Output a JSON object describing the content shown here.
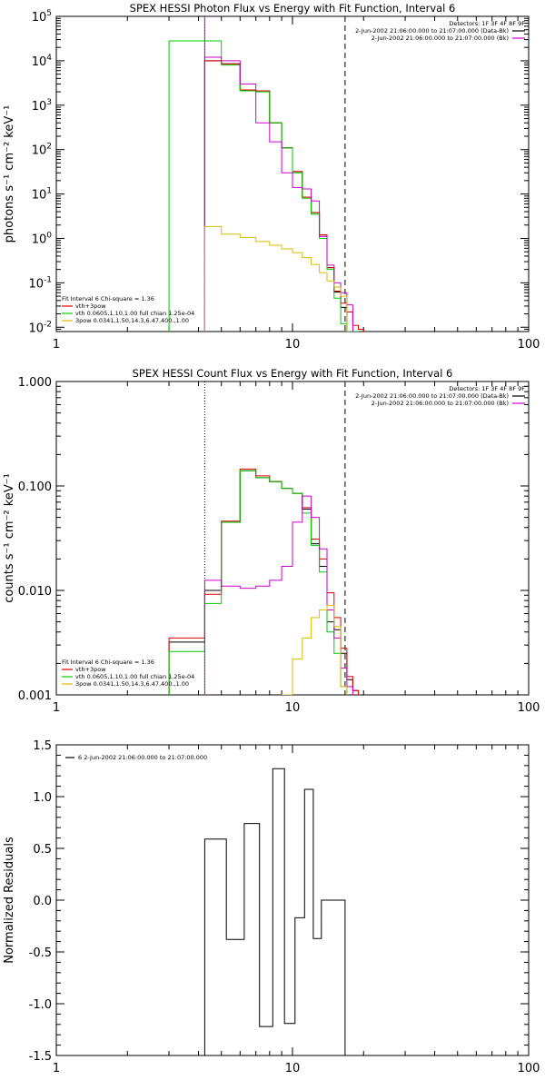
{
  "chart_data": [
    {
      "type": "line",
      "title": "SPEX HESSI Photon Flux vs Energy with Fit Function, Interval 6",
      "ylabel": "photons s⁻¹ cm⁻² keV⁻¹",
      "xlabel": "",
      "xscale": "log",
      "yscale": "log",
      "xlim": [
        1,
        100
      ],
      "ylim": [
        0.008,
        100000
      ],
      "x_tick_labels": [
        "1",
        "10",
        "100"
      ],
      "y_ticks": [
        {
          "value": 0.01,
          "base": "10",
          "exp": "-2"
        },
        {
          "value": 0.1,
          "base": "10",
          "exp": "-1"
        },
        {
          "value": 1,
          "base": "10",
          "exp": "0"
        },
        {
          "value": 10,
          "base": "10",
          "exp": "1"
        },
        {
          "value": 100,
          "base": "10",
          "exp": "2"
        },
        {
          "value": 1000,
          "base": "10",
          "exp": "3"
        },
        {
          "value": 10000,
          "base": "10",
          "exp": "4"
        },
        {
          "value": 100000,
          "base": "10",
          "exp": "5"
        }
      ],
      "vlines": [
        {
          "x": 4.25,
          "style": "dotted",
          "color": "#000000"
        },
        {
          "x": 16.7,
          "style": "dashed",
          "color": "#000000"
        },
        {
          "x": 4.25,
          "style": "solid",
          "color": "#cc00cc"
        }
      ],
      "header_right": [
        {
          "text": "Detectors: 1F 3F 4F 8F 9F",
          "color": null
        },
        {
          "text": "2-Jun-2002 21:06:00.000 to 21:07:00.000 (Data-Bk)",
          "color": "#000000"
        },
        {
          "text": "2-Jun-2002 21:06:00.000 to 21:07:00.000 (Bk)",
          "color": "#cc00cc"
        }
      ],
      "legend_position": "bottom-left",
      "legend": [
        {
          "text": "Fit Interval  6   Chi-square = 1.36",
          "color": null
        },
        {
          "text": "vth+3pow",
          "color": "#dd0000"
        },
        {
          "text": "vth 0.0605,1.10,1.00  full chian 1.25e-04",
          "color": "#00cc00"
        },
        {
          "text": "3pow 0.0341,1.50,14.3,6.47,400.,1.00",
          "color": "#ddbb00"
        }
      ],
      "bin_edges": [
        3.0,
        4.25,
        5.0,
        6.0,
        7.0,
        8.0,
        9.0,
        10.0,
        11.0,
        12.0,
        13.0,
        14.0,
        15.0,
        16.0,
        17.0,
        18.0,
        19.0,
        20.0
      ],
      "series": [
        {
          "name": "Data-Bk",
          "color": "#000000",
          "values": [
            null,
            10000,
            8500,
            2200,
            2100,
            400,
            110,
            32,
            8.5,
            3.8,
            1.2,
            0.22,
            0.062,
            0.028,
            null,
            null,
            null
          ]
        },
        {
          "name": "vth+3pow",
          "color": "#dd0000",
          "values": [
            null,
            10000,
            8500,
            2200,
            2100,
            400,
            110,
            32,
            8.5,
            3.8,
            1.2,
            0.22,
            0.065,
            0.035,
            0.022,
            0.011,
            0.009
          ]
        },
        {
          "name": "vth",
          "color": "#00cc00",
          "values": [
            28000,
            28000,
            8000,
            2100,
            2000,
            400,
            110,
            30,
            8.0,
            3.5,
            1.0,
            0.2,
            0.045,
            0.012,
            0.008,
            0.008,
            null
          ]
        },
        {
          "name": "Bk",
          "color": "#cc00cc",
          "values": [
            null,
            12000,
            10000,
            3000,
            400,
            150,
            30,
            14,
            13,
            7,
            1.1,
            0.25,
            0.1,
            0.06,
            0.032,
            null,
            null
          ]
        },
        {
          "name": "3pow",
          "color": "#ddbb00",
          "values": [
            null,
            1.85,
            1.25,
            1.05,
            0.85,
            0.7,
            0.58,
            0.48,
            0.37,
            0.26,
            0.17,
            0.11,
            0.08,
            0.05,
            null,
            null,
            null
          ]
        }
      ]
    },
    {
      "type": "line",
      "title": "SPEX HESSI Count Flux vs Energy with Fit Function, Interval 6",
      "ylabel": "counts s⁻¹ cm⁻² keV⁻¹",
      "xlabel": "",
      "xscale": "log",
      "yscale": "log",
      "xlim": [
        1,
        100
      ],
      "ylim": [
        0.001,
        1.0
      ],
      "x_tick_labels": [
        "1",
        "10",
        "100"
      ],
      "y_ticks": [
        {
          "value": 0.001,
          "label": "0.001"
        },
        {
          "value": 0.01,
          "label": "0.010"
        },
        {
          "value": 0.1,
          "label": "0.100"
        },
        {
          "value": 1.0,
          "label": "1.000"
        }
      ],
      "vlines": [
        {
          "x": 4.25,
          "style": "dotted",
          "color": "#000000"
        },
        {
          "x": 16.7,
          "style": "dashed",
          "color": "#000000"
        }
      ],
      "header_right": [
        {
          "text": "Detectors: 1F 3F 4F 8F 9F",
          "color": null
        },
        {
          "text": "2-Jun-2002 21:06:00.000 to 21:07:00.000 (Data-Bk)",
          "color": "#000000"
        },
        {
          "text": "2-Jun-2002 21:06:00.000 to 21:07:00.000 (Bk)",
          "color": "#cc00cc"
        }
      ],
      "legend_position": "bottom-left",
      "legend": [
        {
          "text": "Fit Interval  6   Chi-square = 1.36",
          "color": null
        },
        {
          "text": "vth+3pow",
          "color": "#dd0000"
        },
        {
          "text": "vth 0.0605,1.10,1.00  full chian 1.25e-04",
          "color": "#00cc00"
        },
        {
          "text": "3pow 0.0341,1.50,14.3,6.47,400.,1.00",
          "color": "#ddbb00"
        }
      ],
      "bin_edges": [
        3.0,
        4.25,
        5.0,
        6.0,
        7.0,
        8.0,
        9.0,
        10.0,
        11.0,
        12.0,
        13.0,
        14.0,
        15.0,
        16.0,
        17.0,
        18.0,
        19.0,
        20.0
      ],
      "series": [
        {
          "name": "Data-Bk",
          "color": "#000000",
          "values": [
            0.0032,
            0.01,
            0.045,
            0.14,
            0.12,
            0.11,
            0.095,
            0.085,
            0.06,
            0.028,
            0.017,
            0.005,
            0.0042,
            0.0025,
            0.0014,
            0.0011,
            null
          ]
        },
        {
          "name": "vth+3pow",
          "color": "#dd0000",
          "values": [
            0.0035,
            0.0092,
            0.046,
            0.145,
            0.125,
            0.11,
            0.095,
            0.085,
            0.062,
            0.031,
            0.02,
            0.0095,
            0.0055,
            0.0028,
            0.0015,
            0.0011,
            null
          ]
        },
        {
          "name": "vth",
          "color": "#00cc00",
          "values": [
            0.0026,
            0.0075,
            0.045,
            0.14,
            0.12,
            0.11,
            0.095,
            0.085,
            0.055,
            0.027,
            0.015,
            0.004,
            0.0025,
            0.0012,
            null,
            null,
            null
          ]
        },
        {
          "name": "Bk",
          "color": "#cc00cc",
          "values": [
            null,
            0.0125,
            0.011,
            0.0105,
            0.011,
            0.0125,
            0.017,
            0.045,
            0.08,
            0.05,
            0.025,
            0.0065,
            0.0035,
            0.0018,
            0.0012,
            null,
            null
          ]
        },
        {
          "name": "3pow",
          "color": "#ddbb00",
          "values": [
            null,
            null,
            null,
            null,
            null,
            null,
            0.001,
            0.0022,
            0.0035,
            0.0055,
            0.0065,
            0.0072,
            0.0045,
            0.0012,
            null,
            null,
            null
          ]
        }
      ]
    },
    {
      "type": "line",
      "title": "",
      "ylabel": "Normalized Residuals",
      "xlabel": "",
      "xscale": "log",
      "yscale": "linear",
      "xlim": [
        1,
        100
      ],
      "ylim": [
        -1.5,
        1.5
      ],
      "x_tick_labels": [
        "1",
        "10",
        "100"
      ],
      "y_ticks": [
        {
          "value": -1.5,
          "label": "-1.5"
        },
        {
          "value": -1.0,
          "label": "-1.0"
        },
        {
          "value": -0.5,
          "label": "-0.5"
        },
        {
          "value": 0.0,
          "label": "0.0"
        },
        {
          "value": 0.5,
          "label": "0.5"
        },
        {
          "value": 1.0,
          "label": "1.0"
        },
        {
          "value": 1.5,
          "label": "1.5"
        }
      ],
      "legend_position": "top-left",
      "legend": [
        {
          "text": "6  2-Jun-2002 21:06:00.000 to 21:07:00.000",
          "color": "#000000"
        }
      ],
      "bin_edges": [
        4.25,
        5.25,
        6.25,
        7.25,
        8.25,
        9.25,
        10.25,
        11.25,
        12.25,
        13.25,
        14.25,
        16.7
      ],
      "series": [
        {
          "name": "6",
          "color": "#000000",
          "values": [
            0.59,
            -0.38,
            0.74,
            -1.22,
            1.27,
            -1.19,
            -0.17,
            1.07,
            -0.37,
            0.0,
            0.0
          ]
        }
      ]
    }
  ]
}
